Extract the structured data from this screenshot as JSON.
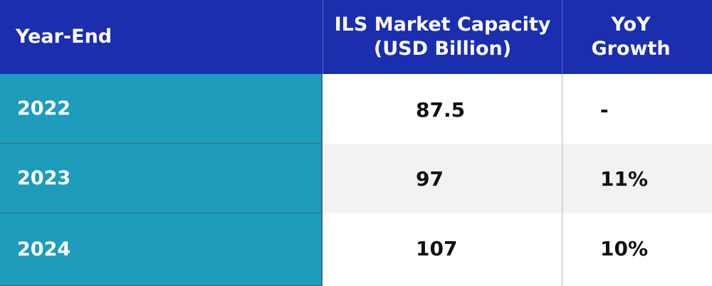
{
  "chart_data": {
    "type": "table",
    "columns": [
      "Year-End",
      "ILS Market Capacity (USD Billion)",
      "YoY Growth"
    ],
    "header": {
      "year": "Year-End",
      "capacity_line1": "ILS Market Capacity",
      "capacity_line2": "(USD Billion)",
      "yoy_line1": "YoY",
      "yoy_line2": "Growth"
    },
    "rows": [
      {
        "year": "2022",
        "capacity": "87.5",
        "yoy": "-"
      },
      {
        "year": "2023",
        "capacity": "97",
        "yoy": "11%"
      },
      {
        "year": "2024",
        "capacity": "107",
        "yoy": "10%"
      }
    ]
  },
  "colors": {
    "header_bg": "#1a2eae",
    "year_cell_bg": "#1e9cbb",
    "alt_row_bg": "#f2f2f2"
  }
}
